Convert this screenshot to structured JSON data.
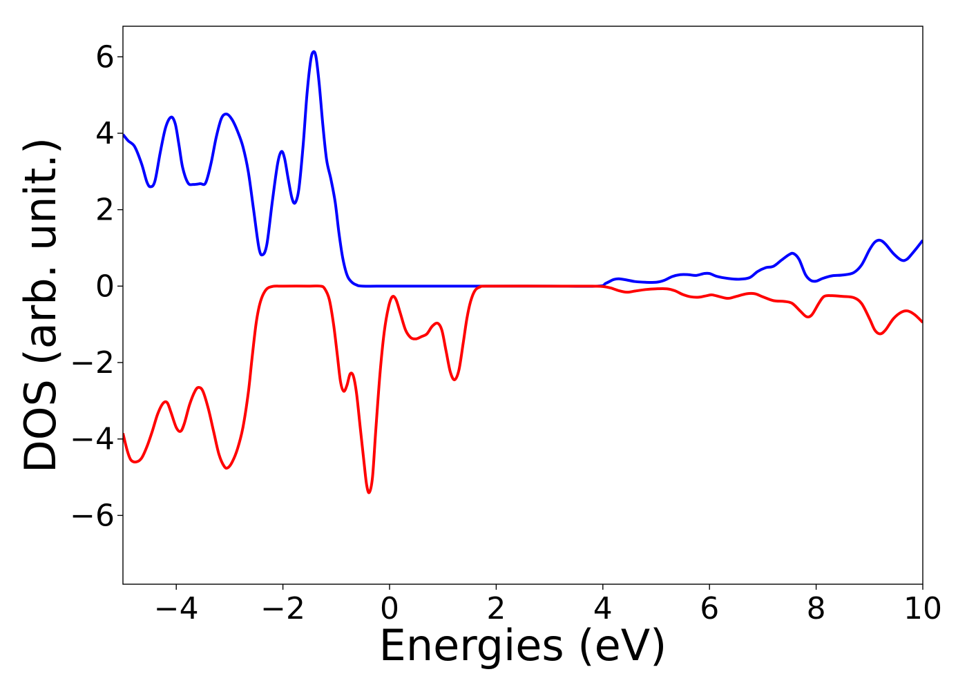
{
  "chart_data": {
    "type": "line",
    "title": "",
    "xlabel": "Energies (eV)",
    "ylabel": "DOS (arb. unit.)",
    "xlim": [
      -5,
      10
    ],
    "ylim": [
      -7.8,
      6.8
    ],
    "x_ticks": [
      -4,
      -2,
      0,
      2,
      4,
      6,
      8,
      10
    ],
    "x_tick_labels": [
      "−4",
      "−2",
      "0",
      "2",
      "4",
      "6",
      "8",
      "10"
    ],
    "y_ticks": [
      -6,
      -4,
      -2,
      0,
      2,
      4,
      6
    ],
    "y_tick_labels": [
      "−6",
      "−4",
      "−2",
      "0",
      "2",
      "4",
      "6"
    ],
    "grid": false,
    "legend": "none",
    "series": [
      {
        "color": "#0000ff",
        "points": [
          [
            -5.0,
            3.97
          ],
          [
            -4.9,
            3.8
          ],
          [
            -4.78,
            3.65
          ],
          [
            -4.65,
            3.2
          ],
          [
            -4.55,
            2.72
          ],
          [
            -4.48,
            2.6
          ],
          [
            -4.4,
            2.75
          ],
          [
            -4.3,
            3.5
          ],
          [
            -4.2,
            4.15
          ],
          [
            -4.1,
            4.42
          ],
          [
            -4.02,
            4.25
          ],
          [
            -3.95,
            3.7
          ],
          [
            -3.88,
            3.1
          ],
          [
            -3.78,
            2.7
          ],
          [
            -3.68,
            2.66
          ],
          [
            -3.55,
            2.68
          ],
          [
            -3.45,
            2.7
          ],
          [
            -3.35,
            3.2
          ],
          [
            -3.25,
            3.9
          ],
          [
            -3.15,
            4.4
          ],
          [
            -3.05,
            4.5
          ],
          [
            -2.95,
            4.35
          ],
          [
            -2.85,
            4.05
          ],
          [
            -2.75,
            3.65
          ],
          [
            -2.65,
            3.0
          ],
          [
            -2.55,
            2.0
          ],
          [
            -2.45,
            1.0
          ],
          [
            -2.38,
            0.82
          ],
          [
            -2.3,
            1.1
          ],
          [
            -2.2,
            2.2
          ],
          [
            -2.1,
            3.2
          ],
          [
            -2.03,
            3.52
          ],
          [
            -1.97,
            3.35
          ],
          [
            -1.9,
            2.8
          ],
          [
            -1.83,
            2.3
          ],
          [
            -1.77,
            2.18
          ],
          [
            -1.7,
            2.55
          ],
          [
            -1.62,
            3.7
          ],
          [
            -1.55,
            5.0
          ],
          [
            -1.48,
            5.9
          ],
          [
            -1.43,
            6.13
          ],
          [
            -1.38,
            6.0
          ],
          [
            -1.32,
            5.3
          ],
          [
            -1.25,
            4.2
          ],
          [
            -1.18,
            3.3
          ],
          [
            -1.1,
            2.8
          ],
          [
            -1.02,
            2.2
          ],
          [
            -0.95,
            1.4
          ],
          [
            -0.88,
            0.75
          ],
          [
            -0.8,
            0.3
          ],
          [
            -0.72,
            0.12
          ],
          [
            -0.62,
            0.03
          ],
          [
            -0.5,
            0.0
          ],
          [
            0.0,
            0.0
          ],
          [
            1.0,
            0.0
          ],
          [
            2.0,
            0.0
          ],
          [
            3.0,
            0.0
          ],
          [
            3.9,
            0.0
          ],
          [
            4.05,
            0.07
          ],
          [
            4.2,
            0.17
          ],
          [
            4.3,
            0.19
          ],
          [
            4.45,
            0.16
          ],
          [
            4.6,
            0.12
          ],
          [
            4.8,
            0.1
          ],
          [
            5.0,
            0.1
          ],
          [
            5.15,
            0.15
          ],
          [
            5.3,
            0.25
          ],
          [
            5.45,
            0.3
          ],
          [
            5.6,
            0.3
          ],
          [
            5.75,
            0.28
          ],
          [
            5.9,
            0.33
          ],
          [
            6.0,
            0.33
          ],
          [
            6.15,
            0.25
          ],
          [
            6.35,
            0.2
          ],
          [
            6.55,
            0.18
          ],
          [
            6.75,
            0.22
          ],
          [
            6.9,
            0.38
          ],
          [
            7.05,
            0.48
          ],
          [
            7.2,
            0.52
          ],
          [
            7.35,
            0.68
          ],
          [
            7.5,
            0.83
          ],
          [
            7.58,
            0.85
          ],
          [
            7.68,
            0.7
          ],
          [
            7.8,
            0.3
          ],
          [
            7.9,
            0.15
          ],
          [
            8.0,
            0.13
          ],
          [
            8.12,
            0.2
          ],
          [
            8.3,
            0.27
          ],
          [
            8.5,
            0.29
          ],
          [
            8.7,
            0.35
          ],
          [
            8.85,
            0.55
          ],
          [
            9.0,
            0.95
          ],
          [
            9.1,
            1.15
          ],
          [
            9.2,
            1.2
          ],
          [
            9.3,
            1.1
          ],
          [
            9.45,
            0.85
          ],
          [
            9.6,
            0.68
          ],
          [
            9.7,
            0.7
          ],
          [
            9.8,
            0.85
          ],
          [
            9.9,
            1.02
          ],
          [
            10.0,
            1.2
          ]
        ]
      },
      {
        "color": "#ff0000",
        "points": [
          [
            -5.0,
            -3.85
          ],
          [
            -4.92,
            -4.3
          ],
          [
            -4.85,
            -4.55
          ],
          [
            -4.75,
            -4.6
          ],
          [
            -4.65,
            -4.5
          ],
          [
            -4.55,
            -4.2
          ],
          [
            -4.45,
            -3.8
          ],
          [
            -4.35,
            -3.35
          ],
          [
            -4.25,
            -3.07
          ],
          [
            -4.17,
            -3.05
          ],
          [
            -4.1,
            -3.3
          ],
          [
            -4.0,
            -3.7
          ],
          [
            -3.92,
            -3.8
          ],
          [
            -3.85,
            -3.6
          ],
          [
            -3.75,
            -3.1
          ],
          [
            -3.65,
            -2.75
          ],
          [
            -3.58,
            -2.65
          ],
          [
            -3.5,
            -2.75
          ],
          [
            -3.4,
            -3.2
          ],
          [
            -3.3,
            -3.8
          ],
          [
            -3.2,
            -4.4
          ],
          [
            -3.1,
            -4.72
          ],
          [
            -3.03,
            -4.75
          ],
          [
            -2.95,
            -4.6
          ],
          [
            -2.85,
            -4.25
          ],
          [
            -2.75,
            -3.7
          ],
          [
            -2.65,
            -2.8
          ],
          [
            -2.58,
            -1.9
          ],
          [
            -2.5,
            -0.95
          ],
          [
            -2.42,
            -0.4
          ],
          [
            -2.32,
            -0.1
          ],
          [
            -2.2,
            -0.01
          ],
          [
            -2.0,
            0.0
          ],
          [
            -1.5,
            0.0
          ],
          [
            -1.3,
            0.0
          ],
          [
            -1.22,
            -0.06
          ],
          [
            -1.13,
            -0.35
          ],
          [
            -1.05,
            -1.0
          ],
          [
            -0.98,
            -1.8
          ],
          [
            -0.92,
            -2.5
          ],
          [
            -0.86,
            -2.75
          ],
          [
            -0.8,
            -2.6
          ],
          [
            -0.74,
            -2.3
          ],
          [
            -0.68,
            -2.35
          ],
          [
            -0.62,
            -2.8
          ],
          [
            -0.55,
            -3.7
          ],
          [
            -0.48,
            -4.6
          ],
          [
            -0.43,
            -5.2
          ],
          [
            -0.38,
            -5.4
          ],
          [
            -0.32,
            -5.0
          ],
          [
            -0.26,
            -3.8
          ],
          [
            -0.18,
            -2.3
          ],
          [
            -0.1,
            -1.2
          ],
          [
            -0.02,
            -0.55
          ],
          [
            0.05,
            -0.28
          ],
          [
            0.12,
            -0.35
          ],
          [
            0.2,
            -0.7
          ],
          [
            0.3,
            -1.15
          ],
          [
            0.4,
            -1.35
          ],
          [
            0.5,
            -1.38
          ],
          [
            0.6,
            -1.32
          ],
          [
            0.7,
            -1.25
          ],
          [
            0.8,
            -1.05
          ],
          [
            0.9,
            -0.97
          ],
          [
            0.98,
            -1.15
          ],
          [
            1.06,
            -1.7
          ],
          [
            1.14,
            -2.25
          ],
          [
            1.22,
            -2.45
          ],
          [
            1.3,
            -2.2
          ],
          [
            1.38,
            -1.5
          ],
          [
            1.45,
            -0.85
          ],
          [
            1.52,
            -0.4
          ],
          [
            1.6,
            -0.12
          ],
          [
            1.7,
            -0.02
          ],
          [
            1.85,
            0.0
          ],
          [
            3.0,
            0.0
          ],
          [
            3.8,
            0.0
          ],
          [
            4.0,
            -0.01
          ],
          [
            4.15,
            -0.05
          ],
          [
            4.3,
            -0.12
          ],
          [
            4.45,
            -0.16
          ],
          [
            4.6,
            -0.13
          ],
          [
            4.8,
            -0.09
          ],
          [
            5.0,
            -0.07
          ],
          [
            5.2,
            -0.07
          ],
          [
            5.35,
            -0.12
          ],
          [
            5.5,
            -0.22
          ],
          [
            5.65,
            -0.28
          ],
          [
            5.8,
            -0.29
          ],
          [
            5.95,
            -0.25
          ],
          [
            6.05,
            -0.23
          ],
          [
            6.2,
            -0.28
          ],
          [
            6.35,
            -0.32
          ],
          [
            6.5,
            -0.27
          ],
          [
            6.7,
            -0.2
          ],
          [
            6.85,
            -0.2
          ],
          [
            7.0,
            -0.28
          ],
          [
            7.2,
            -0.38
          ],
          [
            7.4,
            -0.4
          ],
          [
            7.55,
            -0.45
          ],
          [
            7.7,
            -0.65
          ],
          [
            7.82,
            -0.8
          ],
          [
            7.92,
            -0.75
          ],
          [
            8.05,
            -0.45
          ],
          [
            8.15,
            -0.27
          ],
          [
            8.3,
            -0.25
          ],
          [
            8.5,
            -0.27
          ],
          [
            8.7,
            -0.3
          ],
          [
            8.85,
            -0.45
          ],
          [
            9.0,
            -0.85
          ],
          [
            9.1,
            -1.15
          ],
          [
            9.2,
            -1.25
          ],
          [
            9.3,
            -1.15
          ],
          [
            9.45,
            -0.85
          ],
          [
            9.6,
            -0.68
          ],
          [
            9.72,
            -0.65
          ],
          [
            9.85,
            -0.75
          ],
          [
            10.0,
            -0.95
          ]
        ]
      }
    ]
  }
}
